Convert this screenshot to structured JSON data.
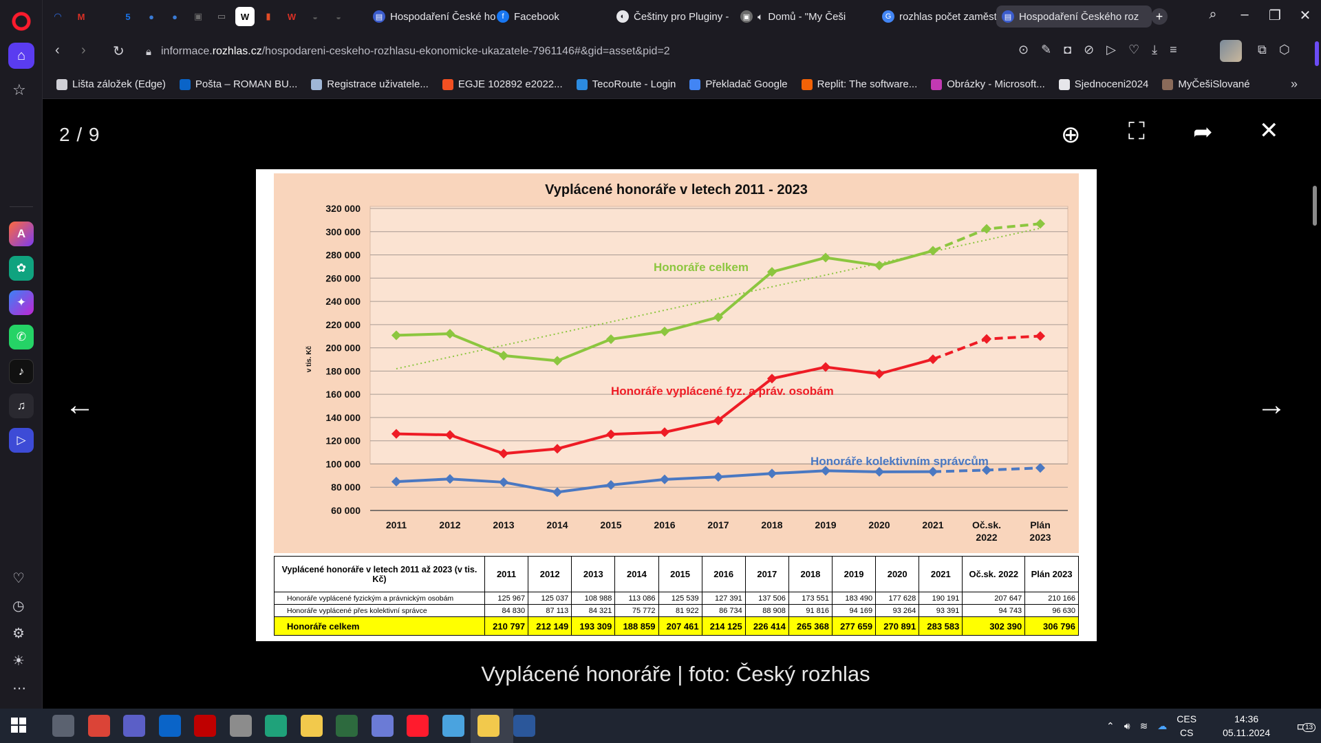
{
  "browser": {
    "pinned_tabs": [
      {
        "icon": "opera-gx-icon",
        "color": "#2f6ee8",
        "glyph": "◠"
      },
      {
        "icon": "gmail-icon",
        "color": "#d93025",
        "glyph": "M"
      },
      {
        "icon": "apple-icon",
        "color": "#555555",
        "glyph": ""
      },
      {
        "icon": "calendar-icon",
        "color": "#1a73e8",
        "glyph": "5"
      },
      {
        "icon": "edge-copilot-icon",
        "color": "#3a7bd5",
        "glyph": "●"
      },
      {
        "icon": "edge-copilot-icon-2",
        "color": "#3a7bd5",
        "glyph": "●"
      },
      {
        "icon": "extension-icon",
        "color": "#6b6b6b",
        "glyph": "▣"
      },
      {
        "icon": "notes-icon",
        "color": "#8a8a8a",
        "glyph": "▭"
      },
      {
        "icon": "wikipedia-icon",
        "color": "#ffffff",
        "glyph": "W"
      },
      {
        "icon": "office-chart-icon",
        "color": "#e34c26",
        "glyph": "▮"
      },
      {
        "icon": "wps-icon",
        "color": "#d93025",
        "glyph": "W"
      },
      {
        "icon": "game-icon",
        "color": "#5a5a5a",
        "glyph": "◒"
      },
      {
        "icon": "game-icon-2",
        "color": "#5a5a5a",
        "glyph": "◒"
      }
    ],
    "tabs": [
      {
        "label": "Hospodaření České ho",
        "fav_color": "#3b5ccc",
        "fav_glyph": "▤"
      },
      {
        "label": "Facebook",
        "fav_color": "#1877f2",
        "fav_glyph": "f"
      },
      {
        "label": "Češtiny pro Pluginy -",
        "fav_color": "#e6e6ea",
        "fav_glyph": "◐"
      },
      {
        "label": "Domů - \"My Češi",
        "fav_color": "#6b6b6b",
        "fav_glyph": "▣"
      },
      {
        "label": "rozhlas počet zaměst",
        "fav_color": "#4285f4",
        "fav_glyph": "G"
      },
      {
        "label": "Hospodaření Českého roz",
        "fav_color": "#3b5ccc",
        "fav_glyph": "▤"
      }
    ],
    "url_prefix": "informace.",
    "url_domain": "rozhlas.cz",
    "url_path": "/hospodareni-ceskeho-rozhlasu-ekonomicke-ukazatele-7961146#&gid=asset&pid=2",
    "bookmarks": [
      {
        "label": "Lišta záložek (Edge)",
        "color": "#d0d0d6"
      },
      {
        "label": "Pošta – ROMAN BU...",
        "color": "#0a64c8"
      },
      {
        "label": "Registrace uživatele...",
        "color": "#9fb6d6"
      },
      {
        "label": "EGJE 102892 e2022...",
        "color": "#f25022"
      },
      {
        "label": "TecoRoute - Login",
        "color": "#2c8be0"
      },
      {
        "label": "Překladač Google",
        "color": "#4285f4"
      },
      {
        "label": "Replit: The software...",
        "color": "#f26207"
      },
      {
        "label": "Obrázky - Microsoft...",
        "color": "#c239b3"
      },
      {
        "label": "Sjednoceni2024",
        "color": "#e6e6ea"
      },
      {
        "label": "MyČešiSlované",
        "color": "#8a6b5a"
      }
    ]
  },
  "viewer": {
    "counter": "2 / 9",
    "caption": "Vyplácené honoráře | foto: Český rozhlas"
  },
  "chart_data": {
    "type": "line",
    "title": "Vyplácené honoráře v letech 2011 - 2023",
    "ylabel": "v tis. Kč",
    "ylim": [
      60000,
      320000
    ],
    "categories": [
      "2011",
      "2012",
      "2013",
      "2014",
      "2015",
      "2016",
      "2017",
      "2018",
      "2019",
      "2020",
      "2021",
      "Oč.sk. 2022",
      "Plán 2023"
    ],
    "series": [
      {
        "name": "Honoráře celkem",
        "color": "#8cc63f",
        "values": [
          210797,
          212149,
          193309,
          188859,
          207461,
          214125,
          226414,
          265368,
          277659,
          270891,
          283583,
          302390,
          306796
        ]
      },
      {
        "name": "Honoráře vyplácené fyz. a práv. osobám",
        "color": "#ee1c25",
        "values": [
          125967,
          125037,
          108988,
          113086,
          125539,
          127391,
          137506,
          173551,
          183490,
          177628,
          190191,
          207647,
          210166
        ]
      },
      {
        "name": "Honoráře kolektivním správcům",
        "color": "#4a78c2",
        "values": [
          84830,
          87113,
          84321,
          75772,
          81922,
          86734,
          88908,
          91816,
          94169,
          93264,
          93391,
          94743,
          96630
        ]
      }
    ],
    "trend": {
      "series": "Honoráře celkem",
      "from": 182000,
      "to": 303000
    },
    "table": {
      "header_label": "Vyplácené honoráře v letech 2011 až 2023 (v tis. Kč)",
      "columns": [
        "2011",
        "2012",
        "2013",
        "2014",
        "2015",
        "2016",
        "2017",
        "2018",
        "2019",
        "2020",
        "2021",
        "Oč.sk. 2022",
        "Plán 2023"
      ],
      "rows": [
        {
          "label": "Honoráře vyplácené fyzickým a právnickým osobám",
          "cells": [
            "125 967",
            "125 037",
            "108 988",
            "113 086",
            "125 539",
            "127 391",
            "137 506",
            "173 551",
            "183 490",
            "177 628",
            "190 191",
            "207 647",
            "210 166"
          ]
        },
        {
          "label": "Honoráře vyplácené přes kolektivní správce",
          "cells": [
            "84 830",
            "87 113",
            "84 321",
            "75 772",
            "81 922",
            "86 734",
            "88 908",
            "91 816",
            "94 169",
            "93 264",
            "93 391",
            "94 743",
            "96 630"
          ]
        },
        {
          "label": "Honoráře celkem",
          "cells": [
            "210 797",
            "212 149",
            "193 309",
            "188 859",
            "207 461",
            "214 125",
            "226 414",
            "265 368",
            "277 659",
            "270 891",
            "283 583",
            "302 390",
            "306 796"
          ]
        }
      ]
    }
  },
  "taskbar": {
    "apps": [
      {
        "icon": "calculator-icon",
        "color": "#5b6270"
      },
      {
        "icon": "chrome-icon",
        "color": "#db4437"
      },
      {
        "icon": "teams-icon",
        "color": "#5b5fc7"
      },
      {
        "icon": "outlook-icon",
        "color": "#0a64c8"
      },
      {
        "icon": "filezilla-icon",
        "color": "#bf0000"
      },
      {
        "icon": "paint-icon",
        "color": "#8c8c8c"
      },
      {
        "icon": "edge-icon",
        "color": "#1fa27a"
      },
      {
        "icon": "file-explorer-icon",
        "color": "#f2c94c"
      },
      {
        "icon": "video-editor-icon",
        "color": "#2d6a3e"
      },
      {
        "icon": "vpn-icon",
        "color": "#6b7bd6"
      },
      {
        "icon": "opera-icon",
        "color": "#ff1b2d"
      },
      {
        "icon": "globe-app-icon",
        "color": "#4aa3df"
      },
      {
        "icon": "notes-app-icon",
        "color": "#f2c94c"
      },
      {
        "icon": "word-icon",
        "color": "#2b579a"
      }
    ],
    "lang_top": "CES",
    "lang_bottom": "CS",
    "time": "14:36",
    "date": "05.11.2024",
    "notifications": "13"
  }
}
